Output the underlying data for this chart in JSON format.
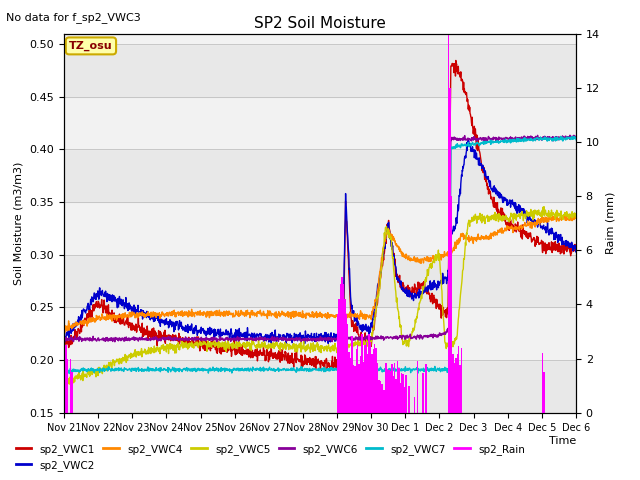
{
  "title": "SP2 Soil Moisture",
  "subtitle": "No data for f_sp2_VWC3",
  "ylabel_left": "Soil Moisture (m3/m3)",
  "ylabel_right": "Raim (mm)",
  "xlabel": "Time",
  "tz_label": "TZ_osu",
  "ylim_left": [
    0.15,
    0.51
  ],
  "ylim_right": [
    0,
    14
  ],
  "background_color": "#ffffff",
  "series_colors": {
    "sp2_VWC1": "#cc0000",
    "sp2_VWC2": "#0000cc",
    "sp2_VWC4": "#ff8800",
    "sp2_VWC5": "#cccc00",
    "sp2_VWC6": "#880099",
    "sp2_VWC7": "#00bbcc",
    "sp2_Rain": "#ff00ff"
  },
  "band_colors": [
    "#e8e8e8",
    "#f2f2f2",
    "#e8e8e8",
    "#f2f2f2",
    "#e8e8e8",
    "#f2f2f2",
    "#e8e8e8",
    "#f2f2f2"
  ],
  "tick_labels": [
    "Nov 21",
    "Nov 22",
    "Nov 23",
    "Nov 24",
    "Nov 25",
    "Nov 26",
    "Nov 27",
    "Nov 28",
    "Nov 29",
    "Nov 30",
    "Dec 1",
    "Dec 2",
    "Dec 3",
    "Dec 4",
    "Dec 5",
    "Dec 6"
  ],
  "figsize": [
    6.4,
    4.8
  ],
  "dpi": 100
}
